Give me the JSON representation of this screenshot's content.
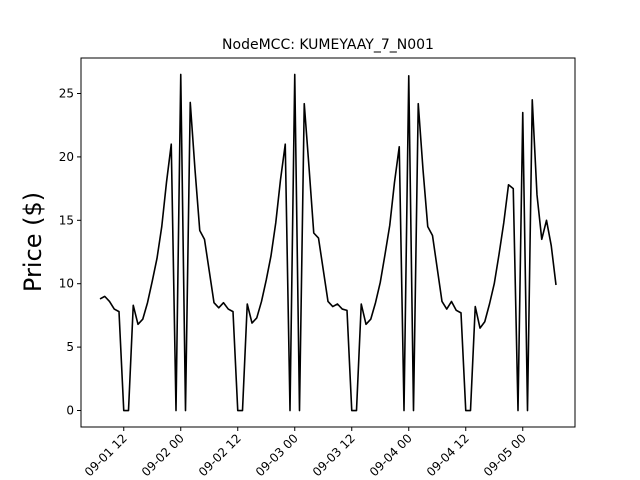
{
  "chart_data": {
    "type": "line",
    "title": "NodeMCC: KUMEYAAY_7_N001",
    "ylabel": "Price ($)",
    "x": [
      "09-01 07",
      "09-01 08",
      "09-01 09",
      "09-01 10",
      "09-01 11",
      "09-01 12",
      "09-01 13",
      "09-01 14",
      "09-01 15",
      "09-01 16",
      "09-01 17",
      "09-01 18",
      "09-01 19",
      "09-01 20",
      "09-01 21",
      "09-01 22",
      "09-01 23",
      "09-02 00",
      "09-02 01",
      "09-02 02",
      "09-02 03",
      "09-02 04",
      "09-02 05",
      "09-02 06",
      "09-02 07",
      "09-02 08",
      "09-02 09",
      "09-02 10",
      "09-02 11",
      "09-02 12",
      "09-02 13",
      "09-02 14",
      "09-02 15",
      "09-02 16",
      "09-02 17",
      "09-02 18",
      "09-02 19",
      "09-02 20",
      "09-02 21",
      "09-02 22",
      "09-02 23",
      "09-03 00",
      "09-03 01",
      "09-03 02",
      "09-03 03",
      "09-03 04",
      "09-03 05",
      "09-03 06",
      "09-03 07",
      "09-03 08",
      "09-03 09",
      "09-03 10",
      "09-03 11",
      "09-03 12",
      "09-03 13",
      "09-03 14",
      "09-03 15",
      "09-03 16",
      "09-03 17",
      "09-03 18",
      "09-03 19",
      "09-03 20",
      "09-03 21",
      "09-03 22",
      "09-03 23",
      "09-04 00",
      "09-04 01",
      "09-04 02",
      "09-04 03",
      "09-04 04",
      "09-04 05",
      "09-04 06",
      "09-04 07",
      "09-04 08",
      "09-04 09",
      "09-04 10",
      "09-04 11",
      "09-04 12",
      "09-04 13",
      "09-04 14",
      "09-04 15",
      "09-04 16",
      "09-04 17",
      "09-04 18",
      "09-04 19",
      "09-04 20",
      "09-04 21",
      "09-04 22",
      "09-04 23",
      "09-05 00",
      "09-05 01",
      "09-05 02",
      "09-05 03",
      "09-05 04",
      "09-05 05",
      "09-05 06",
      "09-05 07"
    ],
    "series": [
      {
        "name": "Price",
        "color": "#000000",
        "values": [
          8.8,
          9.0,
          8.6,
          8.0,
          7.8,
          0,
          0,
          8.3,
          6.8,
          7.2,
          8.5,
          10.2,
          12.0,
          14.5,
          18.0,
          21.0,
          0,
          26.5,
          0,
          24.3,
          19.0,
          14.2,
          13.5,
          11.0,
          8.5,
          8.1,
          8.5,
          8.0,
          7.8,
          0,
          0,
          8.4,
          6.9,
          7.3,
          8.6,
          10.3,
          12.2,
          14.8,
          18.2,
          21.0,
          0,
          26.5,
          0,
          24.2,
          19.2,
          14.0,
          13.6,
          11.1,
          8.6,
          8.2,
          8.4,
          8.0,
          7.9,
          0,
          0,
          8.4,
          6.8,
          7.2,
          8.5,
          10.1,
          12.3,
          14.6,
          18.0,
          20.8,
          0,
          26.4,
          0,
          24.2,
          19.0,
          14.5,
          13.8,
          11.2,
          8.6,
          8.0,
          8.6,
          7.9,
          7.7,
          0,
          0,
          8.2,
          6.5,
          7.0,
          8.4,
          10.0,
          12.3,
          14.8,
          17.8,
          17.5,
          0,
          23.5,
          0,
          24.5,
          17.0,
          13.5,
          15.0,
          13.0,
          9.9
        ]
      }
    ],
    "xlim": [
      "09-01 03",
      "09-05 11"
    ],
    "xticks": [
      "09-01 12",
      "09-02 00",
      "09-02 12",
      "09-03 00",
      "09-03 12",
      "09-04 00",
      "09-04 12",
      "09-05 00"
    ],
    "ylim": [
      -1.3,
      27.8
    ],
    "yticks": [
      0,
      5,
      10,
      15,
      20,
      25
    ]
  }
}
